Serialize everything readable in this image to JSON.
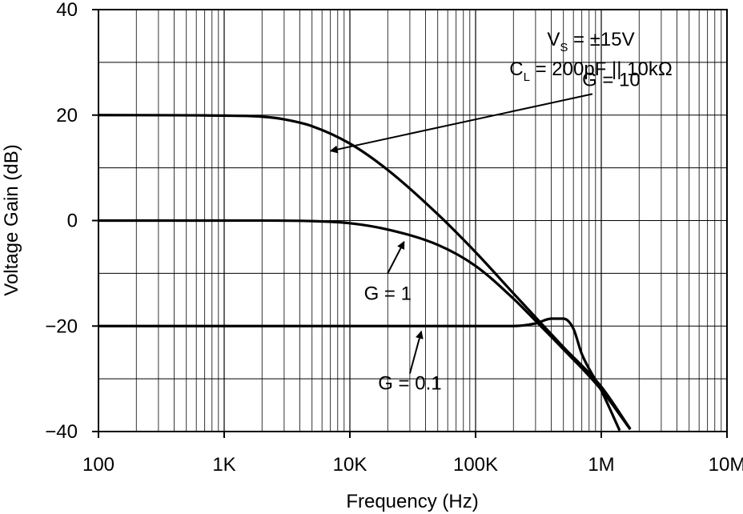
{
  "chart_data": {
    "type": "line",
    "title": "",
    "xlabel": "Frequency (Hz)",
    "ylabel": "Voltage Gain (dB)",
    "xscale": "log",
    "xlim": [
      100,
      10000000
    ],
    "ylim": [
      -40,
      40
    ],
    "grid": true,
    "x_tick_values": [
      100,
      1000,
      10000,
      100000,
      1000000,
      10000000
    ],
    "x_tick_labels": [
      "100",
      "1K",
      "10K",
      "100K",
      "1M",
      "10M"
    ],
    "y_tick_values": [
      40,
      20,
      0,
      -20,
      -40
    ],
    "y_tick_labels": [
      "40",
      "20",
      "0",
      "−20",
      "−40"
    ],
    "conditions": {
      "line1": {
        "prefix": "V",
        "sub": "S",
        "suffix": " = ±15V"
      },
      "line2": {
        "prefix": "C",
        "sub": "L",
        "suffix": " = 200pF || 10kΩ"
      }
    },
    "series": [
      {
        "name": "G = 10",
        "x": [
          100,
          1000,
          2000,
          3000,
          5000,
          10000,
          20000,
          50000,
          100000,
          200000,
          500000,
          1000000,
          1700000
        ],
        "y": [
          20,
          19.9,
          19.7,
          19.2,
          17.9,
          14.6,
          9.6,
          1.2,
          -6.0,
          -13.8,
          -24.0,
          -31.5,
          -39.5
        ]
      },
      {
        "name": "G = 1",
        "x": [
          100,
          1000,
          5000,
          10000,
          20000,
          50000,
          100000,
          200000,
          300000,
          500000,
          1000000,
          1700000
        ],
        "y": [
          0,
          0,
          -0.1,
          -0.5,
          -1.7,
          -4.6,
          -8.6,
          -14.8,
          -19.0,
          -24.4,
          -32.1,
          -39.6
        ]
      },
      {
        "name": "G = 0.1",
        "x": [
          100,
          10000,
          100000,
          200000,
          300000,
          400000,
          500000,
          600000,
          700000,
          1000000,
          1400000
        ],
        "y": [
          -20,
          -20,
          -20,
          -20,
          -19.5,
          -18.6,
          -18.6,
          -20.5,
          -25.3,
          -32.2,
          -39.8
        ]
      }
    ],
    "annotations": [
      {
        "label": "G = 10",
        "text_x": 1200000,
        "text_y": 25.5,
        "arrow_from_x": 850000,
        "arrow_from_y": 24.0,
        "arrow_to_x": 7000,
        "arrow_to_y": 13.2
      },
      {
        "label": "G = 1",
        "text_x": 20000,
        "text_y": -15.0,
        "arrow_from_x": 20000,
        "arrow_from_y": -10.0,
        "arrow_to_x": 27000,
        "arrow_to_y": -4.0
      },
      {
        "label": "G = 0.1",
        "text_x": 30000,
        "text_y": -32.0,
        "arrow_from_x": 30000,
        "arrow_from_y": -29.0,
        "arrow_to_x": 37000,
        "arrow_to_y": -21.0
      }
    ]
  }
}
